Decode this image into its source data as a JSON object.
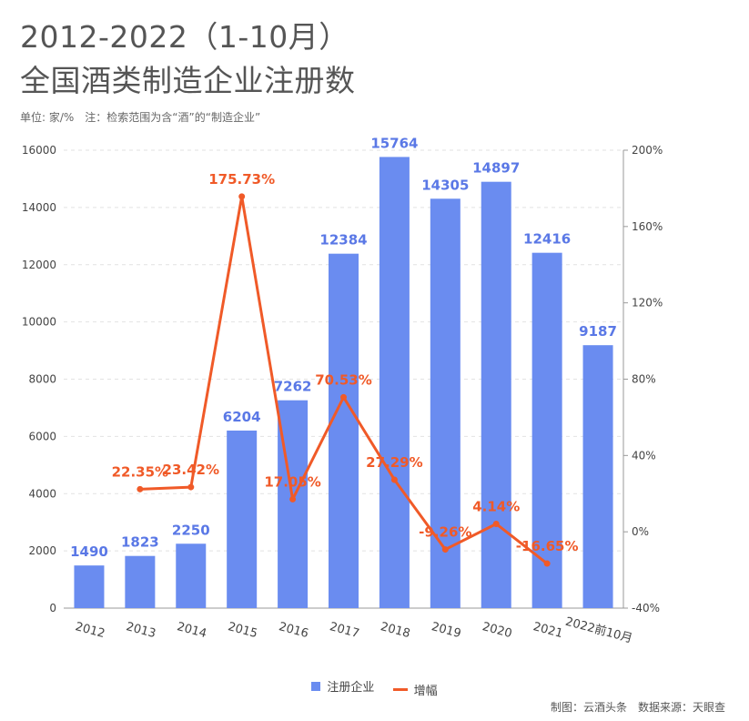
{
  "header": {
    "title_line1": "2012-2022（1-10月）",
    "title_line2": "全国酒类制造企业注册数",
    "subtitle": "单位: 家/%　注：检索范围为含“酒”的“制造企业”"
  },
  "legend": {
    "bar_label": "注册企业",
    "line_label": "增幅"
  },
  "credit": "制图：云酒头条　数据来源：天眼查",
  "colors": {
    "bar": "#6a8cf0",
    "line": "#f05a28",
    "bar_label": "#5a78e6"
  },
  "chart_data": {
    "type": "bar",
    "categories": [
      "2012",
      "2013",
      "2014",
      "2015",
      "2016",
      "2017",
      "2018",
      "2019",
      "2020",
      "2021",
      "2022前10月"
    ],
    "series": [
      {
        "name": "注册企业",
        "type": "bar",
        "axis": "left",
        "values": [
          1490,
          1823,
          2250,
          6204,
          7262,
          12384,
          15764,
          14305,
          14897,
          12416,
          9187
        ]
      },
      {
        "name": "增幅",
        "type": "line",
        "axis": "right",
        "values": [
          null,
          22.35,
          23.42,
          175.73,
          17.05,
          70.53,
          27.29,
          -9.26,
          4.14,
          -16.65,
          null
        ],
        "labels": [
          "",
          "22.35%",
          "23.42%",
          "175.73%",
          "17.05%",
          "70.53%",
          "27.29%",
          "-9.26%",
          "4.14%",
          "-16.65%",
          ""
        ]
      }
    ],
    "y_left": {
      "min": 0,
      "max": 16000,
      "ticks": [
        "0",
        "2000",
        "4000",
        "6000",
        "8000",
        "10000",
        "12000",
        "14000",
        "16000"
      ]
    },
    "y_right": {
      "min": -40,
      "max": 200,
      "ticks": [
        "-40%",
        "0%",
        "40%",
        "80%",
        "120%",
        "160%",
        "200%"
      ]
    },
    "grid": true,
    "legend_position": "bottom-center"
  }
}
